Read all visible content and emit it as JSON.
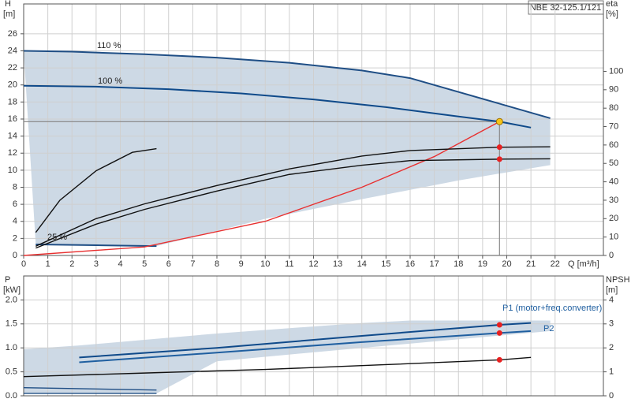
{
  "title": "NBE 32-125.1/121",
  "chart_data": [
    {
      "type": "line",
      "y_label": "H",
      "y_unit": "[m]",
      "y2_label": "eta",
      "y2_unit": "[%]",
      "x_label": "Q [m³/h]",
      "xlim": [
        0,
        24
      ],
      "xticks": [
        0,
        1,
        2,
        3,
        4,
        5,
        6,
        7,
        8,
        9,
        10,
        11,
        12,
        13,
        14,
        15,
        16,
        17,
        18,
        19,
        20,
        21,
        22
      ],
      "ylim": [
        0,
        29.5
      ],
      "yticks": [
        0,
        2,
        4,
        6,
        8,
        10,
        12,
        14,
        16,
        18,
        20,
        22,
        24,
        26
      ],
      "y2lim": [
        0,
        136.6
      ],
      "y2ticks": [
        0,
        10,
        20,
        30,
        40,
        50,
        60,
        70,
        80,
        90,
        100
      ],
      "grid": true,
      "envelope": {
        "color": "#cdd9e5",
        "x": [
          0,
          2,
          5,
          8,
          11,
          14,
          16,
          21.8,
          21.8,
          18,
          14,
          10,
          5.5,
          0.5
        ],
        "y": [
          24,
          23.9,
          23.6,
          23.2,
          22.6,
          21.7,
          20.8,
          16.1,
          10.6,
          8.8,
          6.6,
          4.3,
          1.1,
          1.3
        ]
      },
      "series": [
        {
          "name": "110 %",
          "color": "#1f4e85",
          "x": [
            0,
            2,
            5,
            8,
            11,
            14,
            16,
            21.8
          ],
          "values": [
            24,
            23.9,
            23.6,
            23.2,
            22.6,
            21.7,
            20.8,
            16.1
          ]
        },
        {
          "name": "100 %",
          "color": "#0f4a8a",
          "x": [
            0,
            3,
            6,
            9,
            12,
            15,
            18,
            19.7,
            21
          ],
          "values": [
            19.9,
            19.8,
            19.5,
            19,
            18.3,
            17.4,
            16.3,
            15.7,
            15
          ]
        },
        {
          "name": "25 %",
          "color": "#1f4e85",
          "x": [
            0.5,
            3,
            5.5
          ],
          "values": [
            1.3,
            1.2,
            1.1
          ]
        },
        {
          "color": "#e83030",
          "x": [
            0,
            5,
            10,
            14,
            17,
            19.7
          ],
          "values": [
            0,
            1,
            4,
            8,
            11.6,
            15.7
          ]
        },
        {
          "color": "#111111",
          "axis": "y2",
          "x": [
            0.5,
            3,
            5,
            8,
            11,
            14,
            16,
            19.7,
            21.8
          ],
          "values": [
            5,
            20,
            28,
            38,
            47,
            54,
            57,
            58.8,
            59
          ]
        },
        {
          "color": "#111111",
          "axis": "y2",
          "x": [
            0.5,
            3,
            5,
            8,
            11,
            14,
            16,
            19.7,
            21.8
          ],
          "values": [
            4,
            17,
            25,
            35,
            44,
            49,
            51.5,
            52.3,
            52.5
          ]
        },
        {
          "color": "#111111",
          "axis": "y2",
          "x": [
            0.5,
            1.5,
            3,
            4.5,
            5.5
          ],
          "values": [
            12.5,
            30,
            46,
            56,
            58
          ]
        }
      ],
      "points": [
        {
          "x": 19.7,
          "y": 58.8,
          "axis": "y2",
          "color": "#e82020"
        },
        {
          "x": 19.7,
          "y": 52.3,
          "axis": "y2",
          "color": "#e82020"
        }
      ],
      "duty_point": {
        "x": 19.7,
        "y": 15.7,
        "color": "#f5c518"
      }
    },
    {
      "type": "line",
      "y_label": "P",
      "y_unit": "[kW]",
      "y2_label": "NPSH",
      "y2_unit": "[m]",
      "xlim": [
        0,
        24
      ],
      "xticks": [
        0,
        1,
        2,
        3,
        4,
        5,
        6,
        7,
        8,
        9,
        10,
        11,
        12,
        13,
        14,
        15,
        16,
        17,
        18,
        19,
        20,
        21,
        22
      ],
      "ylim": [
        0,
        2.5
      ],
      "yticks": [
        {
          "value": 0,
          "label": "0.0"
        },
        0.5,
        {
          "value": 1,
          "label": "1.0"
        },
        1.5,
        {
          "value": 2,
          "label": "2.0"
        }
      ],
      "y2lim": [
        0,
        5
      ],
      "y2ticks": [
        0,
        1,
        2,
        3,
        4
      ],
      "grid": true,
      "envelope": {
        "color": "#cdd9e5",
        "x": [
          0,
          2.3,
          8,
          14,
          16,
          21.8,
          21.8,
          14,
          8,
          5.5,
          0
        ],
        "y": [
          0.97,
          1.05,
          1.3,
          1.52,
          1.57,
          1.57,
          1.35,
          1.0,
          0.72,
          0.05,
          0.05
        ]
      },
      "series": [
        {
          "name": "P1 (motor+freq.converter)",
          "color": "#0f4a8a",
          "x": [
            2.3,
            8,
            14,
            19.7,
            21
          ],
          "values": [
            0.8,
            1.0,
            1.25,
            1.48,
            1.52
          ]
        },
        {
          "name": "P2",
          "color": "#1f5fa0",
          "x": [
            2.3,
            8,
            14,
            19.7,
            21
          ],
          "values": [
            0.7,
            0.9,
            1.12,
            1.31,
            1.35
          ]
        },
        {
          "color": "#1f4e85",
          "x": [
            0,
            5.5
          ],
          "values": [
            0.17,
            0.12
          ]
        },
        {
          "color": "#1f4e85",
          "x": [
            0,
            5.5
          ],
          "values": [
            0.05,
            0.05
          ]
        },
        {
          "color": "#111111",
          "axis": "y2",
          "x": [
            0,
            5,
            10,
            15,
            19.7,
            21
          ],
          "values": [
            0.8,
            0.95,
            1.1,
            1.3,
            1.5,
            1.6
          ]
        }
      ],
      "points": [
        {
          "x": 19.7,
          "y": 1.48,
          "color": "#e82020"
        },
        {
          "x": 19.7,
          "y": 1.31,
          "color": "#e82020"
        },
        {
          "x": 19.7,
          "y": 1.5,
          "axis": "y2",
          "color": "#e82020"
        }
      ]
    }
  ]
}
